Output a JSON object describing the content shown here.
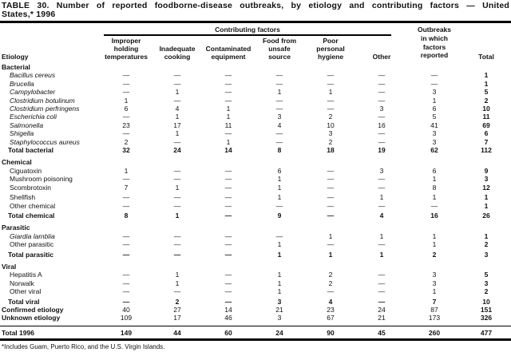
{
  "title": {
    "line1": "TABLE 30. Number of reported foodborne-disease outbreaks, by etiology and contributing factors — United",
    "line2": "States,* 1996"
  },
  "header": {
    "etiology_label": "Etiology",
    "group_label": "Contributing factors",
    "columns": [
      "Improper\nholding\ntemperatures",
      "Inadequate\ncooking",
      "Contaminated\nequipment",
      "Food from\nunsafe\nsource",
      "Poor\npersonal\nhygiene",
      "Other"
    ],
    "outbreaks_label": "Outbreaks\nin which\nfactors\nreported",
    "total_label": "Total"
  },
  "rows": [
    {
      "label": "Bacterial",
      "type": "section"
    },
    {
      "label": "Bacillus cereus",
      "type": "species",
      "italic": true,
      "values": [
        "—",
        "—",
        "—",
        "—",
        "—",
        "—",
        "—",
        "1"
      ]
    },
    {
      "label": "Brucella",
      "type": "species",
      "italic": true,
      "values": [
        "—",
        "—",
        "—",
        "—",
        "—",
        "—",
        "—",
        "1"
      ]
    },
    {
      "label": "Campylobacter",
      "type": "species",
      "italic": true,
      "values": [
        "—",
        "1",
        "—",
        "1",
        "1",
        "—",
        "3",
        "5"
      ]
    },
    {
      "label": "Clostridium botulinum",
      "type": "species",
      "italic": true,
      "values": [
        "1",
        "—",
        "—",
        "—",
        "—",
        "—",
        "1",
        "2"
      ]
    },
    {
      "label": "Clostridium perfringens",
      "type": "species",
      "italic": true,
      "values": [
        "6",
        "4",
        "1",
        "—",
        "—",
        "3",
        "6",
        "10"
      ]
    },
    {
      "label": "Escherichia coli",
      "type": "species",
      "italic": true,
      "values": [
        "—",
        "1",
        "1",
        "3",
        "2",
        "—",
        "5",
        "11"
      ]
    },
    {
      "label": "Salmonella",
      "type": "species",
      "italic": true,
      "values": [
        "23",
        "17",
        "11",
        "4",
        "10",
        "16",
        "41",
        "69"
      ]
    },
    {
      "label": "Shigella",
      "type": "species",
      "italic": true,
      "values": [
        "—",
        "1",
        "—",
        "—",
        "3",
        "—",
        "3",
        "6"
      ]
    },
    {
      "label": "Staphylococcus aureus",
      "type": "species",
      "italic": true,
      "values": [
        "2",
        "—",
        "1",
        "—",
        "2",
        "—",
        "3",
        "7"
      ]
    },
    {
      "label": "Total bacterial",
      "type": "total",
      "values": [
        "32",
        "24",
        "14",
        "8",
        "18",
        "19",
        "62",
        "112"
      ]
    },
    {
      "label": "Chemical",
      "type": "section",
      "gap": true
    },
    {
      "label": "Ciguatoxin",
      "type": "species",
      "values": [
        "1",
        "—",
        "—",
        "6",
        "—",
        "3",
        "6",
        "9"
      ]
    },
    {
      "label": "Mushroom poisoning",
      "type": "species",
      "values": [
        "—",
        "—",
        "—",
        "1",
        "—",
        "—",
        "1",
        "3"
      ]
    },
    {
      "label": "Scombrotoxin",
      "type": "species",
      "values": [
        "7",
        "1",
        "—",
        "1",
        "—",
        "—",
        "8",
        "12"
      ]
    },
    {
      "label": "Shellfish",
      "type": "species",
      "gap_sm": true,
      "values": [
        "—",
        "—",
        "—",
        "1",
        "—",
        "1",
        "1",
        "1"
      ]
    },
    {
      "label": "Other chemical",
      "type": "species",
      "values": [
        "—",
        "—",
        "—",
        "—",
        "—",
        "—",
        "—",
        "1"
      ]
    },
    {
      "label": "Total chemical",
      "type": "total",
      "gap_sm": true,
      "values": [
        "8",
        "1",
        "—",
        "9",
        "—",
        "4",
        "16",
        "26"
      ]
    },
    {
      "label": "Parasitic",
      "type": "section",
      "gap": true
    },
    {
      "label": "Giardia lamblia",
      "type": "species",
      "italic": true,
      "values": [
        "—",
        "—",
        "—",
        "—",
        "1",
        "1",
        "1",
        "1"
      ]
    },
    {
      "label": "Other parasitic",
      "type": "species",
      "values": [
        "—",
        "—",
        "—",
        "1",
        "—",
        "—",
        "1",
        "2"
      ]
    },
    {
      "label": "Total parasitic",
      "type": "total",
      "gap_sm": true,
      "values": [
        "—",
        "—",
        "—",
        "1",
        "1",
        "1",
        "2",
        "3"
      ]
    },
    {
      "label": "Viral",
      "type": "section",
      "gap": true
    },
    {
      "label": "Hepatitis A",
      "type": "species",
      "values": [
        "—",
        "1",
        "—",
        "1",
        "2",
        "—",
        "3",
        "5"
      ]
    },
    {
      "label": "Norwalk",
      "type": "species",
      "values": [
        "—",
        "1",
        "—",
        "1",
        "2",
        "—",
        "3",
        "3"
      ]
    },
    {
      "label": "Other viral",
      "type": "species",
      "values": [
        "—",
        "—",
        "—",
        "1",
        "—",
        "—",
        "1",
        "2"
      ]
    },
    {
      "label": "Total viral",
      "type": "total",
      "gap_sm": true,
      "values": [
        "—",
        "2",
        "—",
        "3",
        "4",
        "—",
        "7",
        "10"
      ]
    },
    {
      "label": "Confirmed etiology",
      "type": "summary",
      "values": [
        "40",
        "27",
        "14",
        "21",
        "23",
        "24",
        "87",
        "151"
      ]
    },
    {
      "label": "Unknown etiology",
      "type": "summary",
      "values": [
        "109",
        "17",
        "46",
        "3",
        "67",
        "21",
        "173",
        "326"
      ]
    },
    {
      "label": "Total 1996",
      "type": "grand",
      "values": [
        "149",
        "44",
        "60",
        "24",
        "90",
        "45",
        "260",
        "477"
      ]
    }
  ],
  "footnote": "*Includes Guam, Puerto Rico, and the U.S. Virgin Islands.",
  "colors": {
    "text": "#111111",
    "rule": "#000000",
    "background": "#ffffff"
  }
}
